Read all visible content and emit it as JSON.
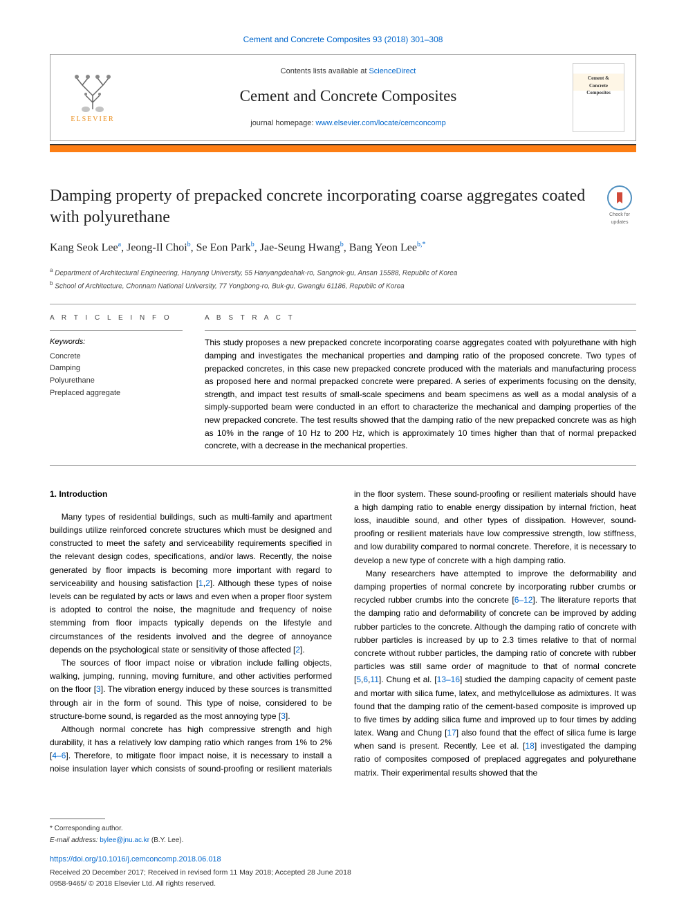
{
  "top_link": {
    "prefix": "",
    "text": "Cement and Concrete Composites 93 (2018) 301–308"
  },
  "header": {
    "contents_prefix": "Contents lists available at ",
    "contents_link": "ScienceDirect",
    "journal_name": "Cement and Concrete Composites",
    "homepage_prefix": "journal homepage: ",
    "homepage_url": "www.elsevier.com/locate/cemconcomp",
    "elsevier_label": "ELSEVIER"
  },
  "check_updates_label": "Check for updates",
  "title": "Damping property of prepacked concrete incorporating coarse aggregates coated with polyurethane",
  "authors_html": "Kang Seok Lee<sup>a</sup>, Jeong-Il Choi<sup>b</sup>, Se Eon Park<sup>b</sup>, Jae-Seung Hwang<sup>b</sup>, Bang Yeon Lee<sup>b,*</sup>",
  "affiliations": [
    {
      "sup": "a",
      "text": "Department of Architectural Engineering, Hanyang University, 55 Hanyangdeahak-ro, Sangnok-gu, Ansan 15588, Republic of Korea"
    },
    {
      "sup": "b",
      "text": "School of Architecture, Chonnam National University, 77 Yongbong-ro, Buk-gu, Gwangju 61186, Republic of Korea"
    }
  ],
  "labels": {
    "article_info": "A R T I C L E  I N F O",
    "abstract": "A B S T R A C T",
    "keywords": "Keywords:"
  },
  "keywords": [
    "Concrete",
    "Damping",
    "Polyurethane",
    "Preplaced aggregate"
  ],
  "abstract": "This study proposes a new prepacked concrete incorporating coarse aggregates coated with polyurethane with high damping and investigates the mechanical properties and damping ratio of the proposed concrete. Two types of prepacked concretes, in this case new prepacked concrete produced with the materials and manufacturing process as proposed here and normal prepacked concrete were prepared. A series of experiments focusing on the density, strength, and impact test results of small-scale specimens and beam specimens as well as a modal analysis of a simply-supported beam were conducted in an effort to characterize the mechanical and damping properties of the new prepacked concrete. The test results showed that the damping ratio of the new prepacked concrete was as high as 10% in the range of 10 Hz to 200 Hz, which is approximately 10 times higher than that of normal prepacked concrete, with a decrease in the mechanical properties.",
  "intro_heading": "1. Introduction",
  "paragraphs": [
    "Many types of residential buildings, such as multi-family and apartment buildings utilize reinforced concrete structures which must be designed and constructed to meet the safety and serviceability requirements specified in the relevant design codes, specifications, and/or laws. Recently, the noise generated by floor impacts is becoming more important with regard to serviceability and housing satisfaction [<a class='ref-link' href='#'>1</a>,<a class='ref-link' href='#'>2</a>]. Although these types of noise levels can be regulated by acts or laws and even when a proper floor system is adopted to control the noise, the magnitude and frequency of noise stemming from floor impacts typically depends on the lifestyle and circumstances of the residents involved and the degree of annoyance depends on the psychological state or sensitivity of those affected [<a class='ref-link' href='#'>2</a>].",
    "The sources of floor impact noise or vibration include falling objects, walking, jumping, running, moving furniture, and other activities performed on the floor [<a class='ref-link' href='#'>3</a>]. The vibration energy induced by these sources is transmitted through air in the form of sound. This type of noise, considered to be structure-borne sound, is regarded as the most annoying type [<a class='ref-link' href='#'>3</a>].",
    "Although normal concrete has high compressive strength and high durability, it has a relatively low damping ratio which ranges from 1% to 2% [<a class='ref-link' href='#'>4–6</a>]. Therefore, to mitigate floor impact noise, it is necessary to install a noise insulation layer which consists of sound-proofing or resilient materials in the floor system. These sound-proofing or resilient materials should have a high damping ratio to enable energy dissipation by internal friction, heat loss, inaudible sound, and other types of dissipation. However, sound-proofing or resilient materials have low compressive strength, low stiffness, and low durability compared to normal concrete. Therefore, it is necessary to develop a new type of concrete with a high damping ratio.",
    "Many researchers have attempted to improve the deformability and damping properties of normal concrete by incorporating rubber crumbs or recycled rubber crumbs into the concrete [<a class='ref-link' href='#'>6–12</a>]. The literature reports that the damping ratio and deformability of concrete can be improved by adding rubber particles to the concrete. Although the damping ratio of concrete with rubber particles is increased by up to 2.3 times relative to that of normal concrete without rubber particles, the damping ratio of concrete with rubber particles was still same order of magnitude to that of normal concrete [<a class='ref-link' href='#'>5</a>,<a class='ref-link' href='#'>6</a>,<a class='ref-link' href='#'>11</a>]. Chung et al. [<a class='ref-link' href='#'>13–16</a>] studied the damping capacity of cement paste and mortar with silica fume, latex, and methylcellulose as admixtures. It was found that the damping ratio of the cement-based composite is improved up to five times by adding silica fume and improved up to four times by adding latex. Wang and Chung [<a class='ref-link' href='#'>17</a>] also found that the effect of silica fume is large when sand is present. Recently, Lee et al. [<a class='ref-link' href='#'>18</a>] investigated the damping ratio of composites composed of preplaced aggregates and polyurethane matrix. Their experimental results showed that the"
  ],
  "footer": {
    "corresponding": "* Corresponding author.",
    "email_label": "E-mail address: ",
    "email": "bylee@jnu.ac.kr",
    "email_suffix": " (B.Y. Lee).",
    "doi": "https://doi.org/10.1016/j.cemconcomp.2018.06.018",
    "dates": "Received 20 December 2017; Received in revised form 11 May 2018; Accepted 28 June 2018",
    "copyright": "0958-9465/ © 2018 Elsevier Ltd. All rights reserved."
  },
  "colors": {
    "accent": "#fd7e14",
    "link": "#0066cc",
    "elsevier": "#e98a15"
  }
}
